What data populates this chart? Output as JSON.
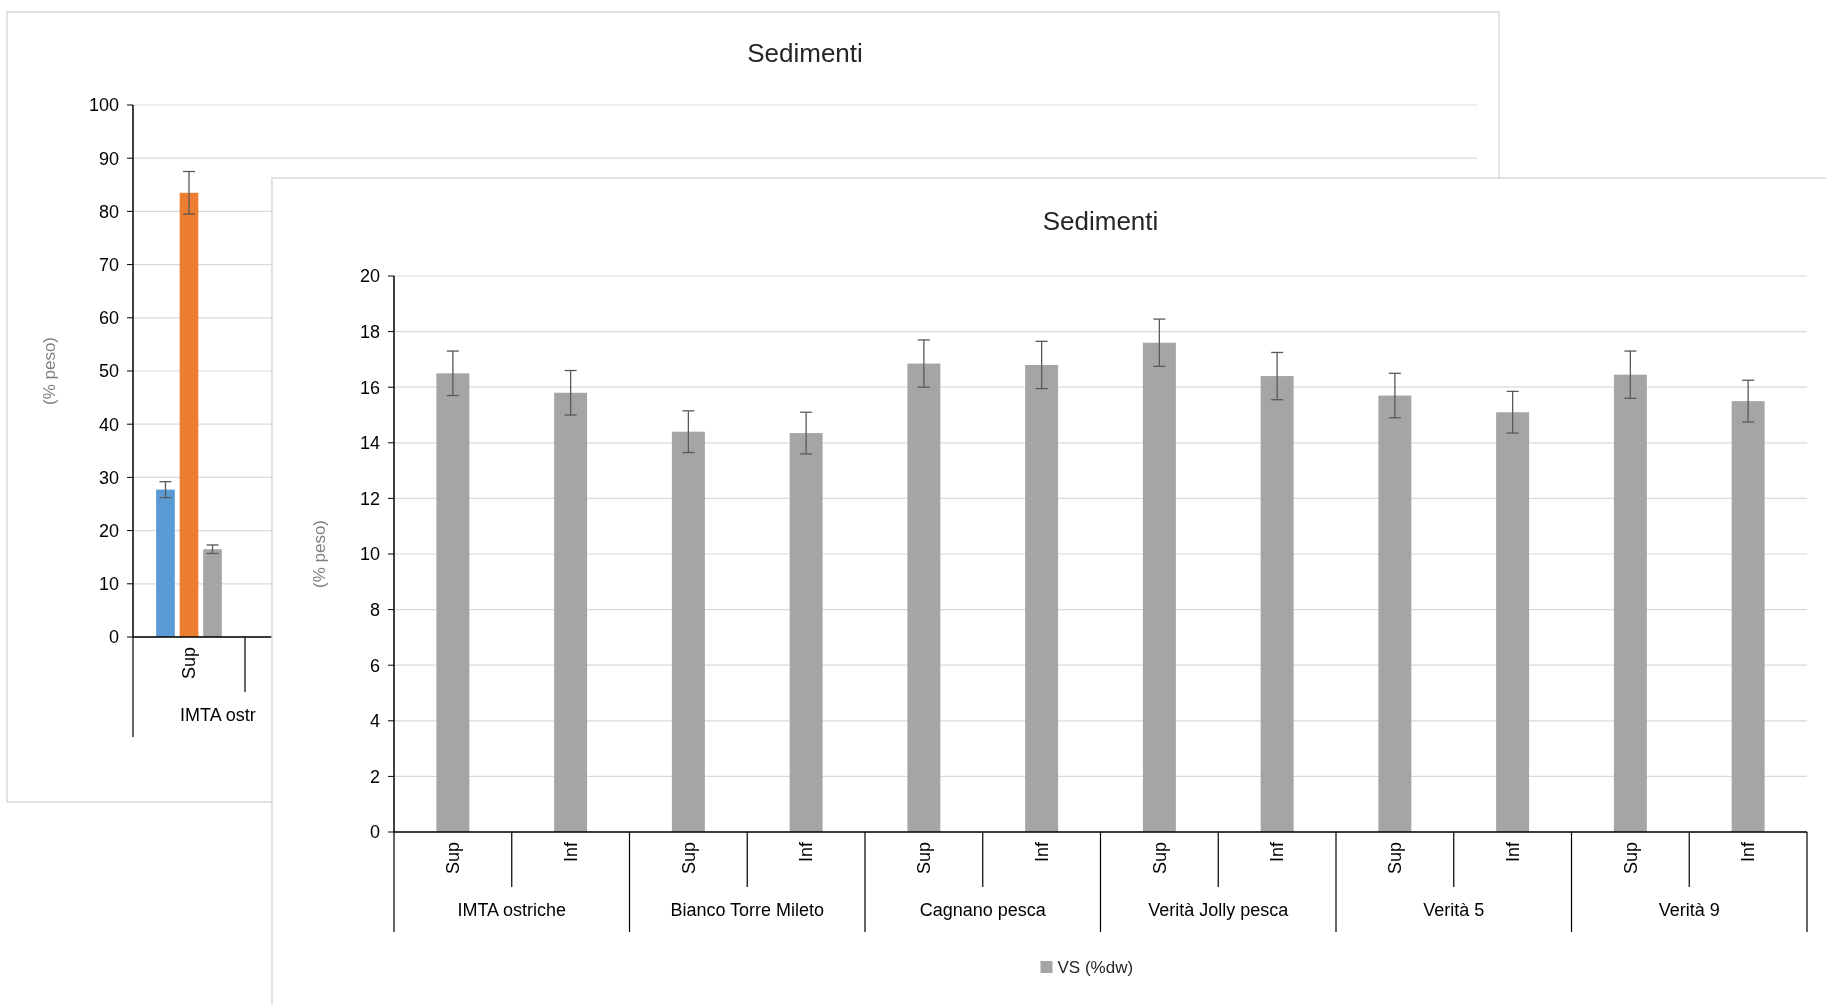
{
  "chart_data": [
    {
      "type": "bar",
      "title": "Sedimenti",
      "ylabel": "(% peso)",
      "categories": [
        "Sup",
        null,
        null,
        null,
        null,
        null,
        null,
        null,
        null,
        null,
        null,
        null
      ],
      "annotations": [
        "IMTA ostr"
      ],
      "series": [
        {
          "color": "#5b9bd5",
          "values": [
            27.7,
            null,
            null,
            null,
            null,
            null,
            null,
            null,
            null,
            null,
            null,
            null
          ],
          "errors": [
            1.5,
            null,
            null,
            null,
            null,
            null,
            null,
            null,
            null,
            null,
            null,
            null
          ]
        },
        {
          "color": "#ed7d31",
          "values": [
            83.5,
            null,
            null,
            null,
            null,
            null,
            null,
            null,
            null,
            null,
            null,
            null
          ],
          "errors": [
            4,
            null,
            null,
            null,
            null,
            null,
            null,
            null,
            null,
            null,
            null,
            null
          ]
        },
        {
          "color": "#a5a5a5",
          "values": [
            16.5,
            null,
            null,
            null,
            null,
            null,
            null,
            null,
            null,
            null,
            null,
            null
          ],
          "errors": [
            0.8,
            null,
            null,
            null,
            null,
            null,
            null,
            null,
            null,
            null,
            null,
            null
          ]
        }
      ],
      "ylim": [
        0,
        100
      ],
      "yticks": [
        0,
        10,
        20,
        30,
        40,
        50,
        60,
        70,
        80,
        90,
        100
      ],
      "grid": "y"
    },
    {
      "type": "bar",
      "title": "Sedimenti",
      "ylabel": "(% peso)",
      "categories": [
        "Sup",
        "Inf",
        "Sup",
        "Inf",
        "Sup",
        "Inf",
        "Sup",
        "Inf",
        "Sup",
        "Inf",
        "Sup",
        "Inf"
      ],
      "annotations": [
        "IMTA ostriche",
        "Bianco Torre Mileto",
        "Cagnano pesca",
        "Verità Jolly pesca",
        "Verità 5",
        "Verità 9"
      ],
      "series": [
        {
          "name": "VS (%dw)",
          "color": "#a5a5a5",
          "values": [
            16.5,
            15.8,
            14.4,
            14.35,
            16.85,
            16.8,
            17.6,
            16.4,
            15.7,
            15.1,
            16.45,
            15.5
          ],
          "errors": [
            0.8,
            0.8,
            0.75,
            0.75,
            0.85,
            0.85,
            0.85,
            0.85,
            0.8,
            0.75,
            0.85,
            0.75
          ]
        }
      ],
      "ylim": [
        0,
        20
      ],
      "yticks": [
        0,
        2,
        4,
        6,
        8,
        10,
        12,
        14,
        16,
        18,
        20
      ],
      "grid": "y",
      "legend": "bottom"
    }
  ]
}
